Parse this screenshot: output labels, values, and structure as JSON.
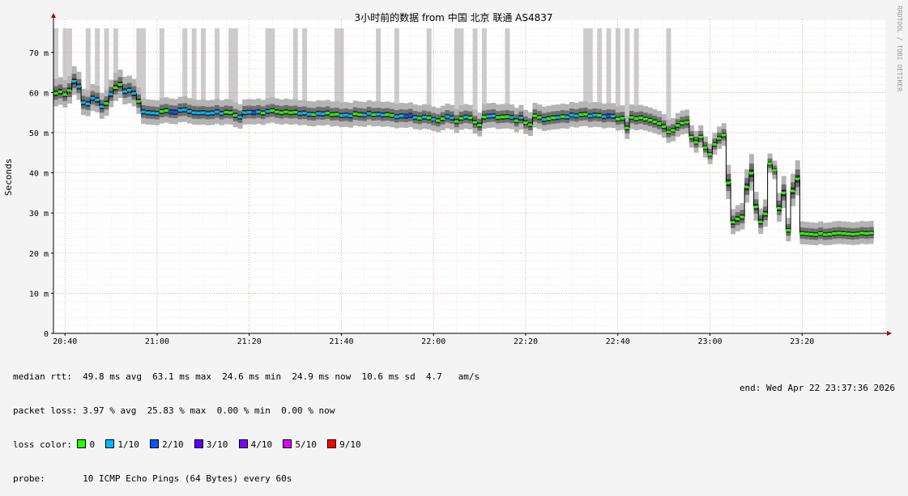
{
  "chart_data": {
    "type": "line",
    "title": "3小时前的数据 from 中国 北京 联通 AS4837",
    "ylabel": "Seconds",
    "watermark": "RRDTOOL / TOBI OETIKER",
    "ylim": [
      0,
      78
    ],
    "y_ticks": [
      {
        "value": 0,
        "label": "0"
      },
      {
        "value": 10,
        "label": "10 m"
      },
      {
        "value": 20,
        "label": "20 m"
      },
      {
        "value": 30,
        "label": "30 m"
      },
      {
        "value": 40,
        "label": "40 m"
      },
      {
        "value": 50,
        "label": "50 m"
      },
      {
        "value": 60,
        "label": "60 m"
      },
      {
        "value": 70,
        "label": "70 m"
      }
    ],
    "xlim_min": [
      -1,
      182
    ],
    "x_ticks": [
      {
        "min": 0,
        "label": "20:40"
      },
      {
        "min": 20,
        "label": "21:00"
      },
      {
        "min": 40,
        "label": "21:20"
      },
      {
        "min": 60,
        "label": "21:40"
      },
      {
        "min": 80,
        "label": "22:00"
      },
      {
        "min": 100,
        "label": "22:20"
      },
      {
        "min": 120,
        "label": "22:40"
      },
      {
        "min": 140,
        "label": "23:00"
      },
      {
        "min": 160,
        "label": "23:20"
      }
    ],
    "series": [
      {
        "x_start": -2,
        "median_rtt_ms": [
          59.8,
          60.2,
          59.5,
          60.5,
          62.8,
          61.5,
          57.5,
          57.2,
          58.6,
          58.2,
          56.5,
          57.3,
          59.6,
          61.2,
          62.0,
          60.3,
          60.6,
          59.8,
          57.8,
          55.2,
          55.0,
          54.9,
          54.8,
          55.3,
          55.5,
          55.2,
          55.1,
          55.6,
          55.7,
          55.3,
          55.0,
          54.9,
          55.0,
          54.8,
          54.9,
          55.2,
          54.8,
          55.1,
          55.0,
          54.3,
          53.9,
          55.0,
          55.1,
          55.0,
          55.2,
          54.9,
          55.3,
          55.5,
          55.2,
          55.0,
          55.2,
          55.0,
          55.1,
          54.8,
          54.9,
          54.6,
          54.5,
          54.8,
          54.7,
          54.9,
          54.5,
          54.6,
          54.3,
          54.4,
          54.2,
          54.7,
          54.5,
          54.4,
          54.8,
          54.5,
          54.6,
          54.4,
          54.5,
          54.3,
          54.0,
          54.2,
          54.1,
          54.3,
          53.8,
          53.6,
          53.9,
          53.7,
          53.3,
          53.0,
          53.5,
          54.0,
          53.7,
          52.8,
          53.6,
          53.9,
          53.7,
          52.6,
          51.9,
          53.9,
          54.1,
          54.2,
          53.8,
          53.9,
          54.0,
          53.8,
          53.0,
          53.7,
          52.5,
          52.0,
          54.2,
          53.8,
          53.3,
          53.5,
          53.7,
          53.8,
          54.0,
          53.9,
          54.4,
          54.2,
          54.5,
          54.6,
          54.2,
          54.4,
          54.3,
          54.0,
          54.2,
          54.1,
          53.4,
          53.6,
          51.2,
          53.8,
          53.5,
          53.7,
          53.4,
          53.1,
          52.7,
          52.3,
          51.5,
          50.2,
          50.6,
          51.8,
          52.4,
          52.6,
          48.9,
          47.6,
          48.9,
          46.3,
          44.6,
          47.1,
          48.6,
          49.4,
          37.5,
          27.7,
          28.5,
          29.0,
          36.5,
          39.9,
          31.5,
          27.8,
          29.8,
          42.3,
          40.6,
          31.2,
          35.0,
          25.7,
          35.5,
          38.5,
          24.9,
          24.8,
          24.7,
          24.6,
          24.9,
          24.6,
          24.7,
          24.9,
          25.0,
          24.9,
          24.8,
          24.7,
          24.8,
          25.0,
          24.9,
          25.0
        ],
        "loss_tenths": [
          0,
          0,
          0,
          0,
          1,
          1,
          1,
          1,
          1,
          1,
          1,
          0,
          1,
          0,
          0,
          1,
          1,
          1,
          0,
          1,
          1,
          1,
          1,
          0,
          0,
          2,
          2,
          1,
          1,
          1,
          1,
          1,
          1,
          1,
          1,
          1,
          1,
          0,
          0,
          0,
          1,
          1,
          1,
          2,
          1,
          0,
          1,
          0,
          0,
          0,
          0,
          0,
          0,
          1,
          1,
          1,
          0,
          1,
          1,
          0,
          0,
          0,
          1,
          1,
          1,
          0,
          0,
          1,
          1,
          0,
          1,
          1,
          0,
          0,
          1,
          1,
          2,
          2,
          1,
          0,
          1,
          0,
          1,
          0,
          0,
          1,
          1,
          0,
          0,
          1,
          0,
          0,
          0,
          0,
          1,
          1,
          0,
          0,
          0,
          1,
          0,
          1,
          0,
          0,
          0,
          0,
          1,
          0,
          0,
          1,
          0,
          1,
          1,
          1,
          0,
          0,
          1,
          1,
          0,
          1,
          2,
          1,
          0,
          0,
          0,
          0,
          0,
          0,
          0,
          0,
          0,
          0,
          0,
          0,
          0,
          0,
          0,
          0,
          0,
          0,
          0,
          0,
          0,
          0,
          0,
          0,
          0,
          0,
          0,
          0,
          0,
          0,
          0,
          0,
          0,
          0,
          0,
          0,
          0,
          0,
          0,
          0,
          0,
          0,
          0,
          0,
          0,
          0,
          0,
          0,
          0,
          0,
          0,
          0,
          0,
          0,
          0,
          0
        ]
      }
    ],
    "max_spike_minutes": [
      -2,
      0,
      1,
      5,
      7,
      9,
      11,
      16,
      17,
      21,
      26,
      28,
      30,
      33,
      36,
      37,
      44,
      45,
      50,
      52,
      59,
      60,
      68,
      72,
      79,
      85,
      86,
      89,
      91,
      96,
      113,
      114,
      116,
      118,
      120,
      122,
      124,
      131
    ],
    "grid": true,
    "legend_position": "bottom-left"
  },
  "legend": {
    "median_rtt": "median rtt:  49.8 ms avg  63.1 ms max  24.6 ms min  24.9 ms now  10.6 ms sd  4.7   am/s",
    "packet_loss": "packet loss: 3.97 % avg  25.83 % max  0.00 % min  0.00 % now",
    "loss_color_label": "loss color:",
    "loss_colors": [
      {
        "label": "0",
        "color": "#26ff00"
      },
      {
        "label": "1/10",
        "color": "#00b8ff"
      },
      {
        "label": "2/10",
        "color": "#0059ff"
      },
      {
        "label": "3/10",
        "color": "#5e00ff"
      },
      {
        "label": "4/10",
        "color": "#7e00ff"
      },
      {
        "label": "5/10",
        "color": "#dd00ff"
      },
      {
        "label": "9/10",
        "color": "#ff0000"
      }
    ],
    "probe": "probe:       10 ICMP Echo Pings (64 Bytes) every 60s",
    "end": "end: Wed Apr 22 23:37:36 2026"
  }
}
